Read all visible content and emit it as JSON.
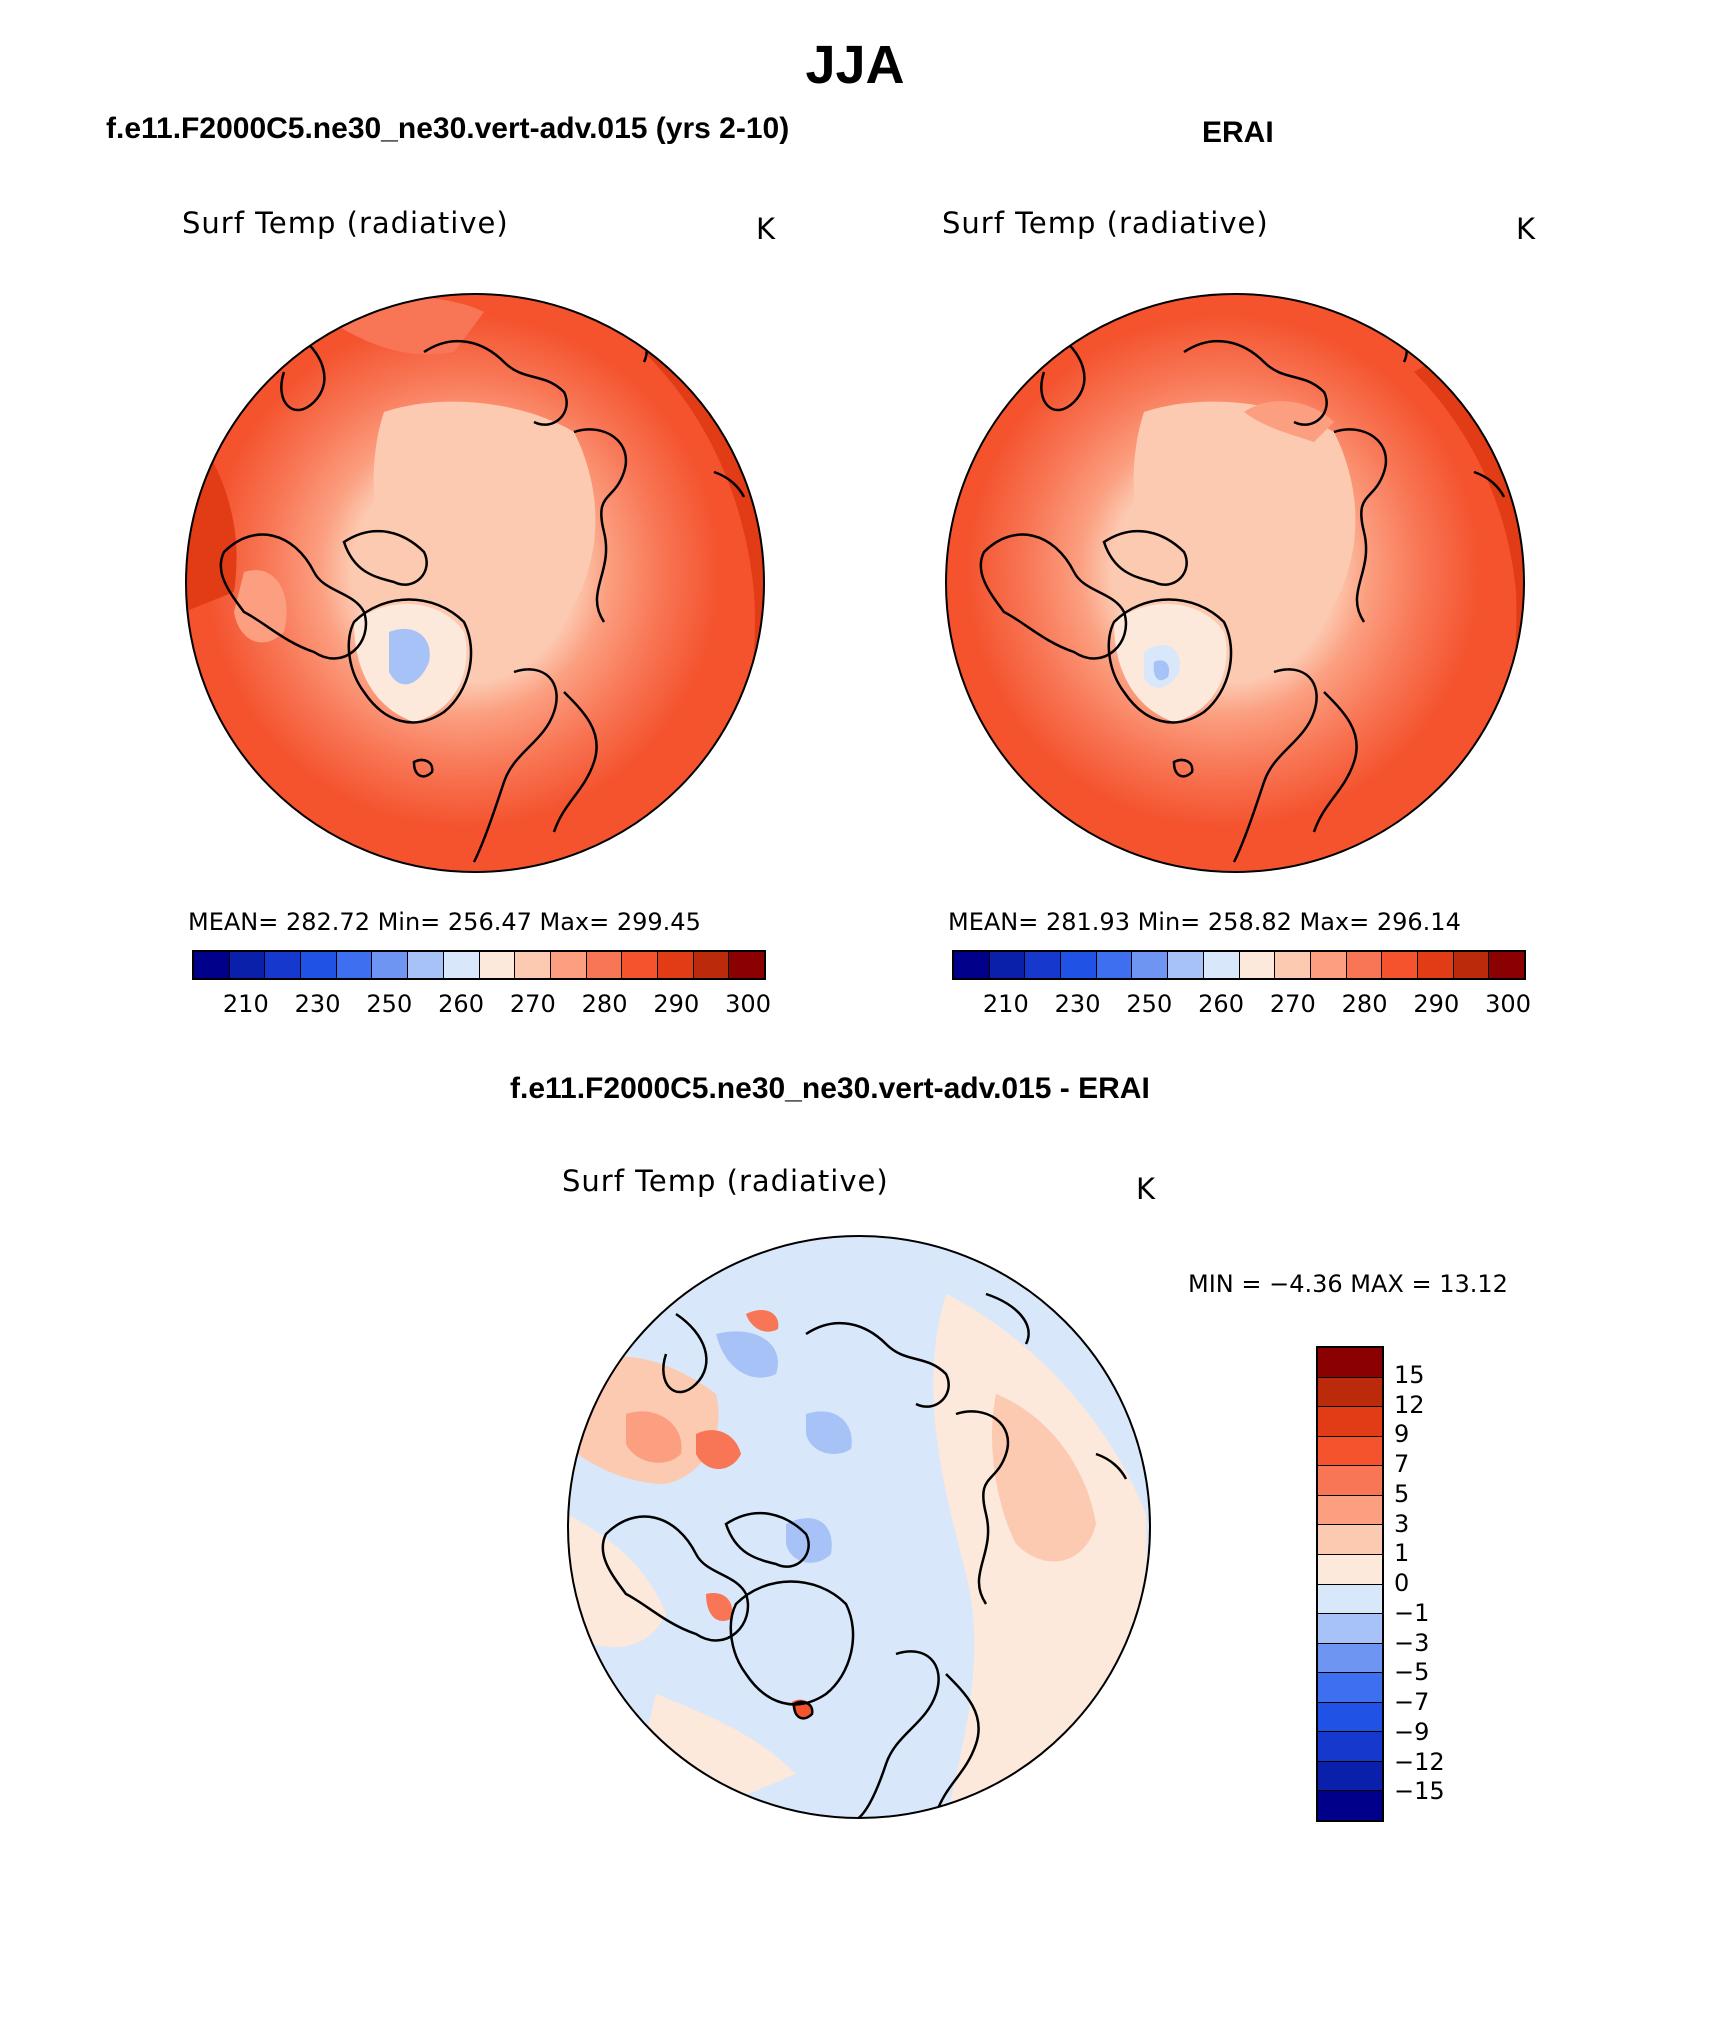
{
  "main_title": "JJA",
  "panels": [
    {
      "title": "f.e11.F2000C5.ne30_ne30.vert-adv.015 (yrs 2-10)",
      "variable": "Surf Temp (radiative)",
      "units": "K",
      "stats": "MEAN= 282.72   Min= 256.47   Max= 299.45"
    },
    {
      "title": "ERAI",
      "variable": "Surf Temp (radiative)",
      "units": "K",
      "stats": "MEAN= 281.93   Min= 258.82   Max= 296.14"
    }
  ],
  "diff_panel": {
    "title": "f.e11.F2000C5.ne30_ne30.vert-adv.015 - ERAI",
    "variable": "Surf Temp (radiative)",
    "units": "K",
    "stats": "MIN =   −4.36 MAX =   13.12"
  },
  "abs_colorbar": {
    "colors": [
      "#00008b",
      "#0a1faa",
      "#1638cc",
      "#2152e6",
      "#3d6ff0",
      "#6e95f2",
      "#a6c2f6",
      "#d8e8fa",
      "#fde8dc",
      "#fcc9b1",
      "#fb9f80",
      "#f87655",
      "#f4532e",
      "#e13c16",
      "#bc2a0c",
      "#8b0000"
    ],
    "labels": [
      "210",
      "230",
      "250",
      "260",
      "270",
      "280",
      "290",
      "300"
    ]
  },
  "diff_colorbar": {
    "colors": [
      "#8b0000",
      "#bc2a0c",
      "#e13c16",
      "#f4532e",
      "#f87655",
      "#fb9f80",
      "#fcc9b1",
      "#fde8dc",
      "#d8e8fa",
      "#a6c2f6",
      "#6e95f2",
      "#3d6ff0",
      "#2152e6",
      "#1638cc",
      "#0a1faa",
      "#00008b"
    ],
    "labels": [
      "15",
      "12",
      "9",
      "7",
      "5",
      "3",
      "1",
      "0",
      "−1",
      "−3",
      "−5",
      "−7",
      "−9",
      "−12",
      "−15"
    ]
  }
}
